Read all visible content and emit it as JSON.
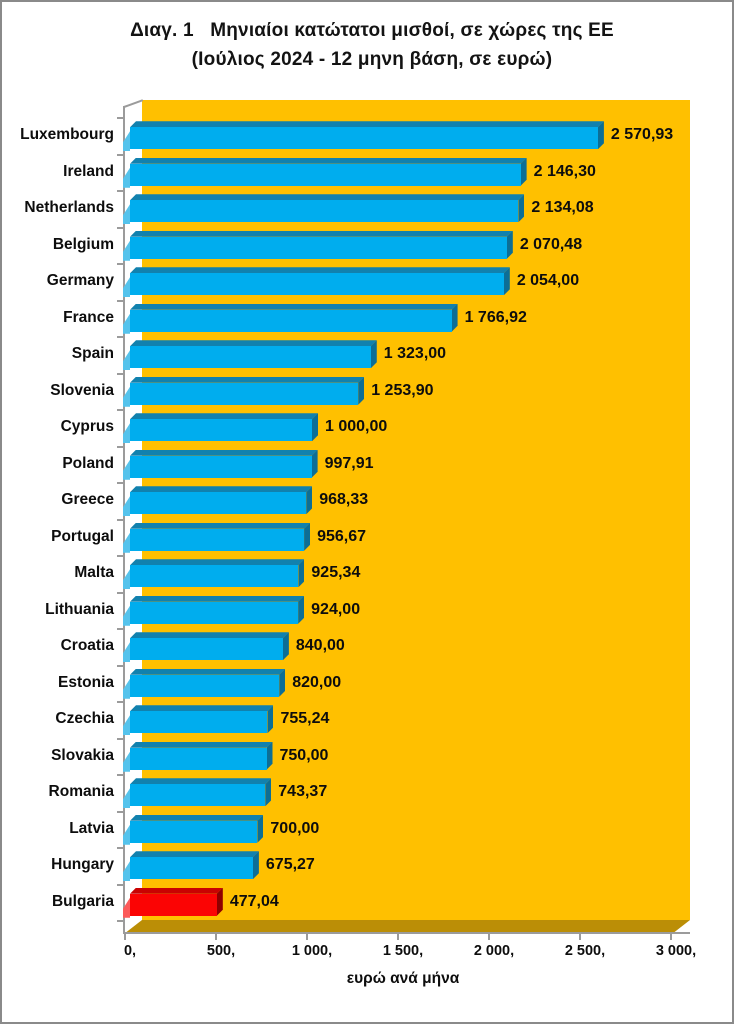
{
  "title": {
    "line1": "Διαγ. 1   Μηνιαίοι κατώτατοι μισθοί, σε χώρες της ΕΕ",
    "line2": "(Ιούλιος 2024 - 12 μηνη βάση, σε ευρώ)"
  },
  "chart_data": {
    "type": "bar",
    "orientation": "horizontal",
    "categories": [
      "Luxembourg",
      "Ireland",
      "Netherlands",
      "Belgium",
      "Germany",
      "France",
      "Spain",
      "Slovenia",
      "Cyprus",
      "Poland",
      "Greece",
      "Portugal",
      "Malta",
      "Lithuania",
      "Croatia",
      "Estonia",
      "Czechia",
      "Slovakia",
      "Romania",
      "Latvia",
      "Hungary",
      "Bulgaria"
    ],
    "values": [
      2570.93,
      2146.3,
      2134.08,
      2070.48,
      2054.0,
      1766.92,
      1323.0,
      1253.9,
      1000.0,
      997.91,
      968.33,
      956.67,
      925.34,
      924.0,
      840.0,
      820.0,
      755.24,
      750.0,
      743.37,
      700.0,
      675.27,
      477.04
    ],
    "value_labels": [
      "2 570,93",
      "2 146,30",
      "2 134,08",
      "2 070,48",
      "2 054,00",
      "1 766,92",
      "1 323,00",
      "1 253,90",
      "1 000,00",
      "997,91",
      "968,33",
      "956,67",
      "925,34",
      "924,00",
      "840,00",
      "820,00",
      "755,24",
      "750,00",
      "743,37",
      "700,00",
      "675,27",
      "477,04"
    ],
    "highlight_category": "Bulgaria",
    "xlabel": "ευρώ ανά μήνα",
    "x_ticks": [
      "0,",
      "500,",
      "1 000,",
      "1 500,",
      "2 000,",
      "2 500,",
      "3 000,"
    ],
    "xlim": [
      0,
      3000
    ],
    "grid": false,
    "legend": false,
    "colors": {
      "bar_face": "#00ADEE",
      "bar_top": "#1181AE",
      "bar_cap": "#0C6E96",
      "bar_lite": "#55C3EC",
      "highlight_face": "#FB0404",
      "highlight_top": "#C90202",
      "highlight_cap": "#8F0000",
      "highlight_lite": "#FC5A5A",
      "wall": "#FFC000",
      "floor": "#BB8E06",
      "axis": "#9B9B9B"
    }
  }
}
